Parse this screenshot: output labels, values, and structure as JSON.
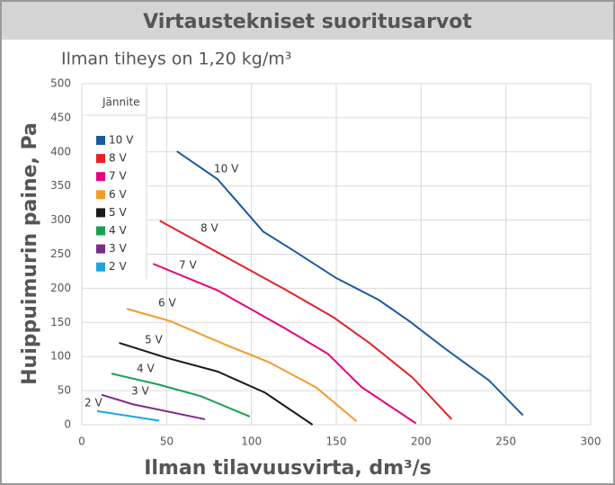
{
  "chart_data": {
    "type": "line",
    "title": "Virtaustekniset suoritusarvot",
    "subtitle": "Ilman tiheys on 1,20 kg/m³",
    "x_label": "Ilman tilavuusvirta, dm³/s",
    "y_label": "Huippuimurin paine, Pa",
    "legend_title": "Jännite",
    "xlim": [
      0,
      300
    ],
    "xticks": [
      0,
      50,
      100,
      150,
      200,
      250,
      300
    ],
    "ylim": [
      0,
      500
    ],
    "yticks": [
      0,
      50,
      100,
      150,
      200,
      250,
      300,
      350,
      400,
      450,
      500
    ],
    "grid": true,
    "series": [
      {
        "name": "10 V",
        "color": "#1a5aa0",
        "x": [
          56,
          80,
          107,
          125,
          150,
          175,
          193,
          215,
          240,
          260
        ],
        "values": [
          401,
          360,
          283,
          255,
          215,
          183,
          152,
          110,
          65,
          14
        ]
      },
      {
        "name": "8 V",
        "color": "#e32228",
        "x": [
          46,
          120,
          148,
          170,
          195,
          218
        ],
        "values": [
          299,
          198,
          158,
          119,
          69,
          8
        ]
      },
      {
        "name": "7 V",
        "color": "#e6007e",
        "x": [
          42,
          80,
          120,
          145,
          165,
          197
        ],
        "values": [
          236,
          197,
          141,
          104,
          55,
          2
        ]
      },
      {
        "name": "6 V",
        "color": "#f39a2e",
        "x": [
          26.5,
          52,
          85,
          110,
          138,
          162
        ],
        "values": [
          170,
          152,
          117,
          92,
          55,
          5
        ]
      },
      {
        "name": "5 V",
        "color": "#1a1a1a",
        "x": [
          22,
          50,
          80,
          108,
          136
        ],
        "values": [
          120,
          98,
          78,
          47,
          0
        ]
      },
      {
        "name": "4 V",
        "color": "#1aa050",
        "x": [
          17.5,
          45,
          70,
          99
        ],
        "values": [
          75,
          59,
          42,
          12
        ]
      },
      {
        "name": "3 V",
        "color": "#7b2a8c",
        "x": [
          11.6,
          30,
          72.6
        ],
        "values": [
          44,
          30,
          8
        ]
      },
      {
        "name": "2 V",
        "color": "#1ea5e0",
        "x": [
          9,
          45.6
        ],
        "values": [
          20,
          6
        ]
      }
    ]
  }
}
